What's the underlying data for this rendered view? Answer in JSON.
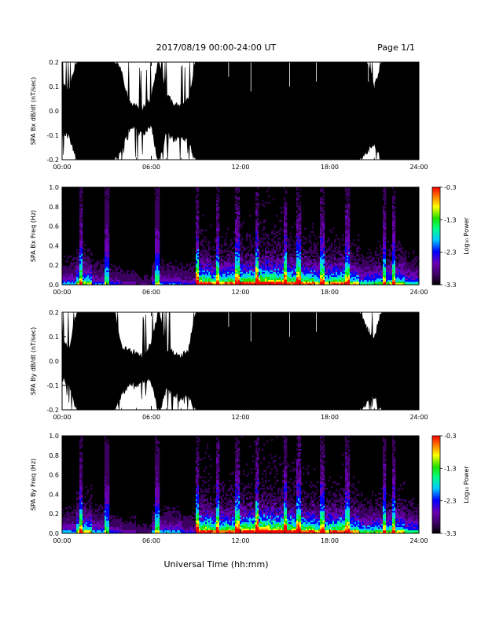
{
  "header": {
    "title": "2017/08/19  00:00-24:00 UT",
    "page": "Page 1/1"
  },
  "footer": {
    "xlabel": "Universal Time (hh:mm)"
  },
  "colorbar": {
    "label": "Log₁₀ Power",
    "ticks": [
      "-0.3",
      "-1.3",
      "-2.3",
      "-3.3"
    ],
    "range": [
      -3.3,
      -0.3
    ],
    "colors": [
      "#000000",
      "#3c0060",
      "#6a00b4",
      "#0000ff",
      "#00c8ff",
      "#00ff80",
      "#20e000",
      "#ffff00",
      "#ff8000",
      "#ff0000"
    ]
  },
  "chart_data": [
    {
      "type": "area",
      "ylabel": "SPA Bx dB/dt (nT/sec)",
      "xlim": [
        "00:00",
        "24:00"
      ],
      "ylim": [
        -0.2,
        0.2
      ],
      "xticks": [
        "00:00",
        "06:00",
        "12:00",
        "18:00",
        "24:00"
      ],
      "yticks": [
        "0.2",
        "0.1",
        "0.0",
        "-0.1",
        "-0.2"
      ],
      "x": [
        0,
        0.5,
        1,
        1.5,
        2,
        2.5,
        3,
        3.5,
        4,
        4.5,
        5,
        5.5,
        6,
        6.5,
        7,
        7.5,
        8,
        8.5,
        9,
        9.5,
        10,
        11,
        12,
        13,
        14,
        15,
        16,
        17,
        18,
        19,
        19.5,
        20,
        20.5,
        21,
        21.5,
        22,
        22.5,
        23,
        23.5,
        24
      ],
      "upper": [
        0.09,
        0.07,
        0.2,
        0.2,
        0.2,
        0.2,
        0.2,
        0.2,
        0.15,
        0.02,
        0.01,
        0.0,
        0.04,
        0.2,
        0.05,
        0.02,
        0.01,
        0.03,
        0.2,
        0.2,
        0.2,
        0.2,
        0.2,
        0.2,
        0.2,
        0.2,
        0.2,
        0.2,
        0.2,
        0.2,
        0.2,
        0.2,
        0.2,
        0.08,
        0.2,
        0.2,
        0.2,
        0.2,
        0.2,
        0.2
      ],
      "lower": [
        -0.07,
        -0.09,
        -0.2,
        -0.2,
        -0.2,
        -0.2,
        -0.2,
        -0.2,
        -0.15,
        -0.05,
        -0.05,
        -0.07,
        -0.05,
        -0.2,
        -0.08,
        -0.1,
        -0.1,
        -0.1,
        -0.2,
        -0.2,
        -0.2,
        -0.2,
        -0.2,
        -0.2,
        -0.2,
        -0.2,
        -0.2,
        -0.2,
        -0.2,
        -0.2,
        -0.2,
        -0.2,
        -0.15,
        -0.12,
        -0.2,
        -0.2,
        -0.2,
        -0.2,
        -0.2,
        -0.2
      ]
    },
    {
      "type": "heatmap",
      "ylabel": "SPA Bx Freq (Hz)",
      "xlim": [
        "00:00",
        "24:00"
      ],
      "ylim": [
        0.0,
        1.0
      ],
      "xticks": [
        "00:00",
        "06:00",
        "12:00",
        "18:00",
        "24:00"
      ],
      "yticks": [
        "1.0",
        "0.8",
        "0.6",
        "0.4",
        "0.2",
        "0.0"
      ],
      "z_units": "Log10 Power",
      "zlim": [
        -3.3,
        -0.3
      ],
      "activity_hours": [
        0,
        1,
        2,
        3,
        4,
        5,
        6,
        7,
        8,
        9,
        10,
        11,
        12,
        13,
        14,
        15,
        16,
        17,
        18,
        19,
        20,
        21,
        22,
        23
      ],
      "activity_level": [
        0.35,
        0.55,
        0.3,
        0.25,
        0.2,
        0.15,
        0.3,
        0.3,
        0.25,
        0.75,
        0.65,
        0.7,
        0.75,
        0.85,
        0.8,
        0.75,
        0.7,
        0.6,
        0.7,
        0.6,
        0.45,
        0.5,
        0.55,
        0.4
      ],
      "bright_streak_hours": [
        1.3,
        3.0,
        6.4,
        9.1,
        10.5,
        11.8,
        13.1,
        15.0,
        15.9,
        17.5,
        19.2,
        21.7,
        22.3
      ]
    },
    {
      "type": "area",
      "ylabel": "SPA By dB/dt (nT/sec)",
      "xlim": [
        "00:00",
        "24:00"
      ],
      "ylim": [
        -0.2,
        0.2
      ],
      "xticks": [
        "00:00",
        "06:00",
        "12:00",
        "18:00",
        "24:00"
      ],
      "yticks": [
        "0.2",
        "0.1",
        "0.0",
        "-0.1",
        "-0.2"
      ],
      "x": [
        0,
        0.5,
        1,
        1.5,
        2,
        2.5,
        3,
        3.5,
        4,
        4.5,
        5,
        5.5,
        6,
        6.5,
        7,
        7.5,
        8,
        8.5,
        9,
        9.5,
        10,
        11,
        12,
        13,
        14,
        15,
        16,
        17,
        18,
        19,
        19.5,
        20,
        20.5,
        21,
        21.5,
        22,
        22.5,
        23,
        23.5,
        24
      ],
      "upper": [
        0.06,
        0.04,
        0.2,
        0.2,
        0.2,
        0.2,
        0.2,
        0.2,
        0.04,
        0.03,
        0.02,
        0.01,
        0.06,
        0.2,
        0.04,
        0.02,
        0.01,
        0.03,
        0.2,
        0.2,
        0.2,
        0.2,
        0.2,
        0.2,
        0.2,
        0.2,
        0.2,
        0.2,
        0.2,
        0.2,
        0.2,
        0.2,
        0.12,
        0.08,
        0.2,
        0.2,
        0.2,
        0.2,
        0.2,
        0.2
      ],
      "lower": [
        -0.06,
        -0.08,
        -0.2,
        -0.2,
        -0.2,
        -0.2,
        -0.2,
        -0.2,
        -0.12,
        -0.08,
        -0.09,
        -0.06,
        -0.07,
        -0.2,
        -0.1,
        -0.12,
        -0.14,
        -0.12,
        -0.2,
        -0.2,
        -0.2,
        -0.2,
        -0.2,
        -0.2,
        -0.2,
        -0.2,
        -0.2,
        -0.2,
        -0.2,
        -0.2,
        -0.2,
        -0.2,
        -0.15,
        -0.13,
        -0.2,
        -0.2,
        -0.2,
        -0.2,
        -0.2,
        -0.2
      ]
    },
    {
      "type": "heatmap",
      "ylabel": "SPA By Freq (Hz)",
      "xlim": [
        "00:00",
        "24:00"
      ],
      "ylim": [
        0.0,
        1.0
      ],
      "xticks": [
        "00:00",
        "06:00",
        "12:00",
        "18:00",
        "24:00"
      ],
      "yticks": [
        "1.0",
        "0.8",
        "0.6",
        "0.4",
        "0.2",
        "0.0"
      ],
      "z_units": "Log10 Power",
      "zlim": [
        -3.3,
        -0.3
      ],
      "activity_hours": [
        0,
        1,
        2,
        3,
        4,
        5,
        6,
        7,
        8,
        9,
        10,
        11,
        12,
        13,
        14,
        15,
        16,
        17,
        18,
        19,
        20,
        21,
        22,
        23
      ],
      "activity_level": [
        0.35,
        0.6,
        0.35,
        0.25,
        0.2,
        0.15,
        0.35,
        0.35,
        0.25,
        0.8,
        0.7,
        0.75,
        0.8,
        0.9,
        0.85,
        0.8,
        0.75,
        0.65,
        0.75,
        0.65,
        0.5,
        0.55,
        0.6,
        0.45
      ],
      "bright_streak_hours": [
        1.3,
        3.0,
        6.4,
        9.1,
        10.5,
        11.8,
        13.1,
        15.0,
        15.9,
        17.5,
        19.2,
        21.7,
        22.3
      ]
    }
  ]
}
